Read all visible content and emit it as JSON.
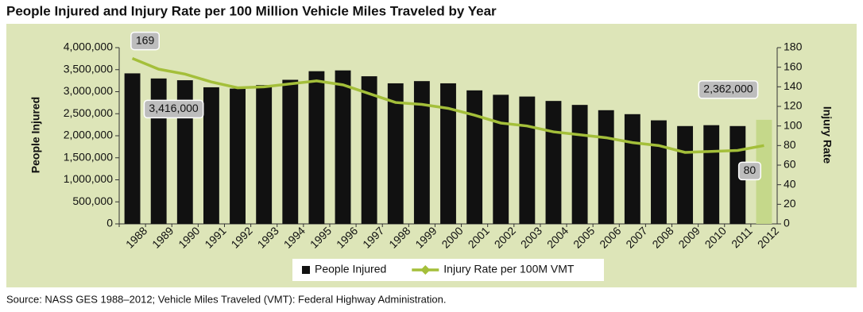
{
  "chart_data": {
    "type": "bar-line",
    "title": "People Injured and Injury Rate per 100 Million Vehicle Miles Traveled by Year",
    "source": "Source: NASS GES 1988–2012; Vehicle Miles Traveled (VMT): Federal Highway Administration.",
    "y_label": "People Injured",
    "y2_label": "Injury Rate",
    "categories": [
      "1988",
      "1989",
      "1990",
      "1991",
      "1992",
      "1993",
      "1994",
      "1995",
      "1996",
      "1997",
      "1998",
      "1999",
      "2000",
      "2001",
      "2002",
      "2003",
      "2004",
      "2005",
      "2006",
      "2007",
      "2008",
      "2009",
      "2010",
      "2011",
      "2012"
    ],
    "series": [
      {
        "name": "People Injured",
        "type": "bar",
        "color": "#111111",
        "colors": [
          "#111111",
          "#111111",
          "#111111",
          "#111111",
          "#111111",
          "#111111",
          "#111111",
          "#111111",
          "#111111",
          "#111111",
          "#111111",
          "#111111",
          "#111111",
          "#111111",
          "#111111",
          "#111111",
          "#111111",
          "#111111",
          "#111111",
          "#111111",
          "#111111",
          "#111111",
          "#111111",
          "#111111",
          "#c5d88a"
        ],
        "values": [
          3416000,
          3300000,
          3260000,
          3100000,
          3070000,
          3150000,
          3270000,
          3465000,
          3483000,
          3350000,
          3190000,
          3240000,
          3190000,
          3030000,
          2930000,
          2890000,
          2790000,
          2700000,
          2580000,
          2490000,
          2350000,
          2220000,
          2240000,
          2220000,
          2362000
        ],
        "value_labels": [
          "3,416,000",
          null,
          null,
          null,
          null,
          null,
          null,
          null,
          null,
          null,
          null,
          null,
          null,
          null,
          null,
          null,
          null,
          null,
          null,
          null,
          null,
          null,
          null,
          null,
          "2,362,000"
        ]
      },
      {
        "name": "Injury Rate per 100M VMT",
        "type": "line",
        "axis": "y2",
        "color": "#a4bf3a",
        "values": [
          169,
          158,
          153,
          145,
          139,
          140,
          143,
          146,
          142,
          133,
          124,
          122,
          118,
          111,
          103,
          100,
          94,
          91,
          88,
          83,
          80,
          73,
          74,
          75,
          80
        ],
        "value_labels": [
          "169",
          null,
          null,
          null,
          null,
          null,
          null,
          null,
          null,
          null,
          null,
          null,
          null,
          null,
          null,
          null,
          null,
          null,
          null,
          null,
          null,
          null,
          null,
          null,
          "80"
        ]
      }
    ],
    "ylim": [
      0,
      4000000
    ],
    "yticks": [
      0,
      {
        "value": 500000,
        "label": "500,000"
      },
      {
        "value": 1000000,
        "label": "1,000,000"
      },
      {
        "value": 1500000,
        "label": "1,500,000"
      },
      {
        "value": 2000000,
        "label": "2,000,000"
      },
      {
        "value": 2500000,
        "label": "2,500,000"
      },
      {
        "value": 3000000,
        "label": "3,000,000"
      },
      {
        "value": 3500000,
        "label": "3,500,000"
      },
      {
        "value": 4000000,
        "label": "4,000,000"
      }
    ],
    "y2lim": [
      0,
      180
    ],
    "y2ticks": [
      0,
      20,
      40,
      60,
      80,
      100,
      120,
      140,
      160,
      180
    ],
    "legend": "bottom",
    "background": "#dde5b8"
  }
}
